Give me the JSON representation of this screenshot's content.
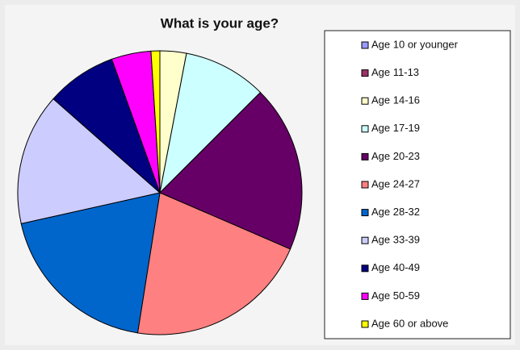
{
  "chart_data": {
    "type": "pie",
    "title": "What is your age?",
    "categories": [
      "Age 10 or younger",
      "Age 11-13",
      "Age 14-16",
      "Age 17-19",
      "Age 20-23",
      "Age 24-27",
      "Age 28-32",
      "Age 33-39",
      "Age 40-49",
      "Age 50-59",
      "Age 60 or above"
    ],
    "values": [
      0,
      0,
      3,
      9.5,
      19,
      21,
      19,
      15,
      8,
      4.5,
      1
    ],
    "colors": [
      "#9999ff",
      "#993366",
      "#ffffcc",
      "#ccffff",
      "#660066",
      "#ff8080",
      "#0066cc",
      "#ccccff",
      "#000080",
      "#ff00ff",
      "#ffff00"
    ],
    "legend": "right"
  }
}
